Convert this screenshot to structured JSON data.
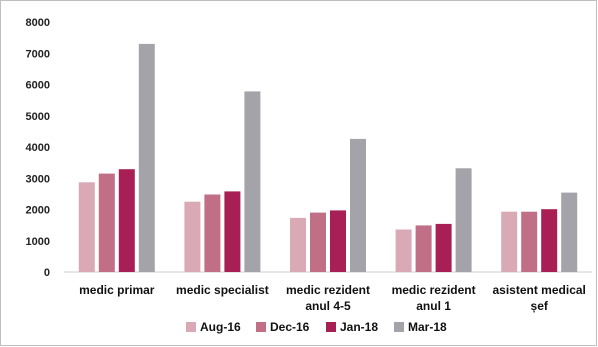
{
  "chart_data": {
    "type": "bar",
    "categories": [
      [
        "medic primar"
      ],
      [
        "medic specialist"
      ],
      [
        "medic rezident",
        "anul 4-5"
      ],
      [
        "medic rezident",
        "anul 1"
      ],
      [
        "asistent medical",
        "șef"
      ]
    ],
    "series": [
      {
        "name": "Aug-16",
        "color": "#d9aab6",
        "values": [
          2870,
          2250,
          1730,
          1360,
          1930
        ]
      },
      {
        "name": "Dec-16",
        "color": "#c06f86",
        "values": [
          3150,
          2480,
          1900,
          1490,
          1930
        ]
      },
      {
        "name": "Jan-18",
        "color": "#a71f55",
        "values": [
          3290,
          2580,
          1970,
          1540,
          2010
        ]
      },
      {
        "name": "Mar-18",
        "color": "#a3a3a9",
        "values": [
          7300,
          5780,
          4260,
          3320,
          2540
        ]
      }
    ],
    "yticks": [
      0,
      1000,
      2000,
      3000,
      4000,
      5000,
      6000,
      7000,
      8000
    ],
    "ylim": [
      0,
      8000
    ],
    "grid": false,
    "legend": "bottom"
  }
}
